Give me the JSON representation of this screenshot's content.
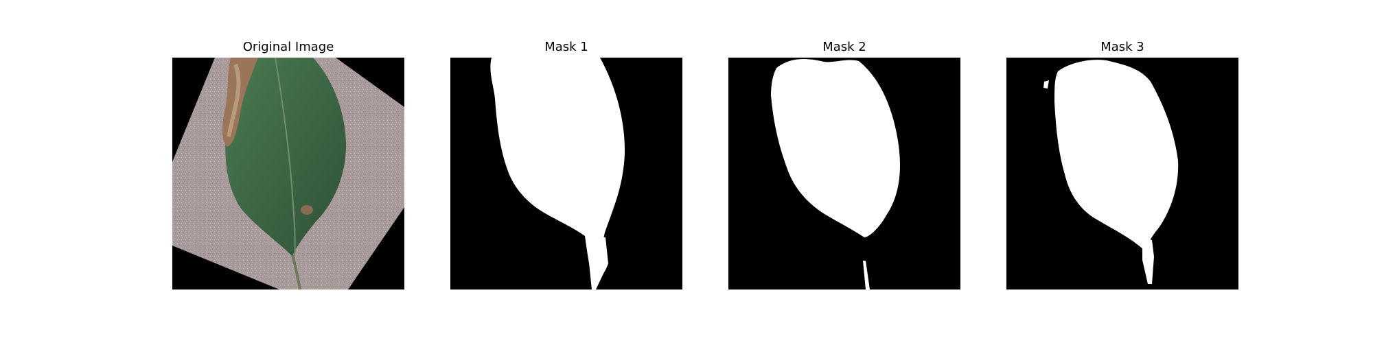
{
  "figure": {
    "panels": [
      {
        "title": "Original Image"
      },
      {
        "title": "Mask 1"
      },
      {
        "title": "Mask 2"
      },
      {
        "title": "Mask 3"
      }
    ]
  },
  "colors": {
    "background": "#000000",
    "mask": "#ffffff",
    "substrate": "#a89a9b",
    "leaf": "#3f6b45",
    "leaf_dark": "#2f5236",
    "lesion": "#9a7558",
    "lesion_light": "#b89a7c"
  }
}
